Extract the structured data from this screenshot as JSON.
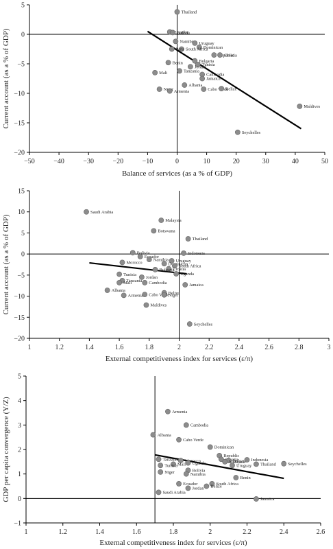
{
  "chart_data": [
    {
      "type": "scatter",
      "xlabel": "Balance of services (as a % of GDP)",
      "ylabel": "Current account (as a % of GDP)",
      "xlim": [
        -50,
        50
      ],
      "ylim": [
        -20,
        5
      ],
      "xticks": [
        "−50",
        "−40",
        "−30",
        "−20",
        "−10",
        "0",
        "10",
        "20",
        "30",
        "40",
        "50"
      ],
      "yticks": [
        "5",
        "0",
        "−5",
        "−10",
        "−15",
        "−20"
      ],
      "points": [
        {
          "label": "Thailand",
          "x": 0,
          "y": 3.8
        },
        {
          "label": "Ecuador",
          "x": -2.5,
          "y": 0.4
        },
        {
          "label": "Bolivia",
          "x": -1.5,
          "y": 0.3
        },
        {
          "label": "Namibia",
          "x": -0.5,
          "y": -1.2
        },
        {
          "label": "Uruguay",
          "x": 6,
          "y": -1.5
        },
        {
          "label": "Dominican",
          "x": 7.5,
          "y": -2.2
        },
        {
          "label": "South Africa",
          "x": 1.5,
          "y": -2.5
        },
        {
          "label": "Peru",
          "x": -1.8,
          "y": -2.5
        },
        {
          "label": "Republic",
          "x": 12.5,
          "y": -3.5
        },
        {
          "label": "Croatia",
          "x": 14.5,
          "y": -3.5
        },
        {
          "label": "Bulgaria",
          "x": 6,
          "y": -4.5
        },
        {
          "label": "Tunisia",
          "x": 7,
          "y": -5.1
        },
        {
          "label": "Benin",
          "x": -3,
          "y": -4.8
        },
        {
          "label": "Jordan",
          "x": 4.5,
          "y": -5.5
        },
        {
          "label": "Tanzania",
          "x": 0.8,
          "y": -6.2
        },
        {
          "label": "Mali",
          "x": -7.5,
          "y": -6.5
        },
        {
          "label": "Cambodia",
          "x": 8.5,
          "y": -6.8
        },
        {
          "label": "Jamaica",
          "x": 8.5,
          "y": -7.5
        },
        {
          "label": "Albania",
          "x": 2.5,
          "y": -8.6
        },
        {
          "label": "Niger",
          "x": -6,
          "y": -9.3
        },
        {
          "label": "Armenia",
          "x": -2.5,
          "y": -9.6
        },
        {
          "label": "Cabo Verde",
          "x": 9,
          "y": -9.3
        },
        {
          "label": "Belize",
          "x": 15,
          "y": -9.2
        },
        {
          "label": "Maldives",
          "x": 41.5,
          "y": -12.2
        },
        {
          "label": "Seychelles",
          "x": 20.5,
          "y": -16.6
        }
      ],
      "trend": {
        "x1": -10,
        "y1": 0.5,
        "x2": 42,
        "y2": -16
      }
    },
    {
      "type": "scatter",
      "xlabel": "External competitiveness index for services (ε/π)",
      "ylabel": "Current account (as a % of GDP)",
      "xlim": [
        1,
        3
      ],
      "ylim": [
        -20,
        15
      ],
      "xticks": [
        "1",
        "1.2",
        "1.4",
        "1.6",
        "1.8",
        "2",
        "2.2",
        "2.4",
        "2.6",
        "2.8",
        "3"
      ],
      "yticks": [
        "15",
        "10",
        "5",
        "0",
        "−5",
        "−10",
        "−15",
        "−20"
      ],
      "points": [
        {
          "label": "Saudi Arabia",
          "x": 1.38,
          "y": 10
        },
        {
          "label": "Malaysia",
          "x": 1.88,
          "y": 8
        },
        {
          "label": "Botswana",
          "x": 1.83,
          "y": 5.5
        },
        {
          "label": "Thailand",
          "x": 2.06,
          "y": 3.6
        },
        {
          "label": "Bolivia",
          "x": 1.69,
          "y": 0.3
        },
        {
          "label": "Indonesia",
          "x": 2.03,
          "y": 0.2
        },
        {
          "label": "Ecuador",
          "x": 1.74,
          "y": -0.6
        },
        {
          "label": "Namibia",
          "x": 1.8,
          "y": -1.3
        },
        {
          "label": "Uruguay",
          "x": 1.95,
          "y": -1.6
        },
        {
          "label": "Morocco",
          "x": 1.62,
          "y": -2
        },
        {
          "label": "Dominican",
          "x": 1.9,
          "y": -2.3
        },
        {
          "label": "South Africa",
          "x": 1.97,
          "y": -2.8
        },
        {
          "label": "Croatia",
          "x": 1.93,
          "y": -3.5
        },
        {
          "label": "Bulgaria",
          "x": 1.84,
          "y": -3.7
        },
        {
          "label": "Uganda",
          "x": 1.98,
          "y": -4.7
        },
        {
          "label": "Tunisia",
          "x": 1.6,
          "y": -4.8
        },
        {
          "label": "Jordan",
          "x": 1.75,
          "y": -5.5
        },
        {
          "label": "Tanzania",
          "x": 1.62,
          "y": -6.3
        },
        {
          "label": "Mali",
          "x": 1.6,
          "y": -6.8
        },
        {
          "label": "Cambodia",
          "x": 1.77,
          "y": -6.8
        },
        {
          "label": "Jamaica",
          "x": 2.04,
          "y": -7.3
        },
        {
          "label": "Albania",
          "x": 1.52,
          "y": -8.6
        },
        {
          "label": "Belize",
          "x": 1.9,
          "y": -9.2
        },
        {
          "label": "Cabo Verde",
          "x": 1.77,
          "y": -9.6
        },
        {
          "label": "Niger",
          "x": 1.9,
          "y": -9.7
        },
        {
          "label": "Armenia",
          "x": 1.63,
          "y": -9.8
        },
        {
          "label": "Maldives",
          "x": 1.78,
          "y": -12.1
        },
        {
          "label": "Seychelles",
          "x": 2.07,
          "y": -16.6
        }
      ],
      "trend": {
        "x1": 1.4,
        "y1": -2.1,
        "x2": 2.05,
        "y2": -4.7
      }
    },
    {
      "type": "scatter",
      "xlabel": "External competitiveness index for services (ε/π)",
      "ylabel": "GDP per capita convergence (Y/Z)",
      "xlim": [
        1,
        2.6
      ],
      "ylim": [
        -1,
        5
      ],
      "xticks": [
        "1",
        "1.2",
        "1.4",
        "1.6",
        "1.8",
        "2",
        "2.2",
        "2.4",
        "2.6"
      ],
      "yticks": [
        "5",
        "4",
        "3",
        "2",
        "1",
        "0",
        "−1"
      ],
      "points": [
        {
          "label": "Armenia",
          "x": 1.77,
          "y": 3.55
        },
        {
          "label": "Cambodia",
          "x": 1.87,
          "y": 3
        },
        {
          "label": "Albania",
          "x": 1.69,
          "y": 2.6
        },
        {
          "label": "Cabo Verde",
          "x": 1.83,
          "y": 2.4
        },
        {
          "label": "Dominican",
          "x": 2,
          "y": 2.1
        },
        {
          "label": "Republic",
          "x": 2.05,
          "y": 1.75
        },
        {
          "label": "Tanzania",
          "x": 1.72,
          "y": 1.6
        },
        {
          "label": "Croatia",
          "x": 2.06,
          "y": 1.6
        },
        {
          "label": "Bulgaria",
          "x": 2.1,
          "y": 1.55
        },
        {
          "label": "Morocco",
          "x": 1.84,
          "y": 1.55
        },
        {
          "label": "Indonesia",
          "x": 2.2,
          "y": 1.58
        },
        {
          "label": "Malaysia",
          "x": 2.08,
          "y": 1.5
        },
        {
          "label": "Uganda",
          "x": 1.88,
          "y": 1.45
        },
        {
          "label": "Mali",
          "x": 1.8,
          "y": 1.4
        },
        {
          "label": "Thailand",
          "x": 2.25,
          "y": 1.4
        },
        {
          "label": "Seychelles",
          "x": 2.4,
          "y": 1.42
        },
        {
          "label": "Uruguay",
          "x": 2.12,
          "y": 1.35
        },
        {
          "label": "Tunisia",
          "x": 1.73,
          "y": 1.35
        },
        {
          "label": "Bolivia",
          "x": 1.88,
          "y": 1.15
        },
        {
          "label": "Niger",
          "x": 1.73,
          "y": 1.08
        },
        {
          "label": "Namibia",
          "x": 1.87,
          "y": 1
        },
        {
          "label": "Benin",
          "x": 2.14,
          "y": 0.85
        },
        {
          "label": "Ecuador",
          "x": 1.83,
          "y": 0.6
        },
        {
          "label": "South Africa",
          "x": 2.01,
          "y": 0.6
        },
        {
          "label": "Jordan",
          "x": 1.88,
          "y": 0.42
        },
        {
          "label": "Belize",
          "x": 1.98,
          "y": 0.5
        },
        {
          "label": "Saudi Arabia",
          "x": 1.72,
          "y": 0.25
        },
        {
          "label": "Jamaica",
          "x": 2.25,
          "y": -0.02
        }
      ],
      "trend": {
        "x1": 1.7,
        "y1": 1.78,
        "x2": 2.4,
        "y2": 0.82
      }
    }
  ]
}
